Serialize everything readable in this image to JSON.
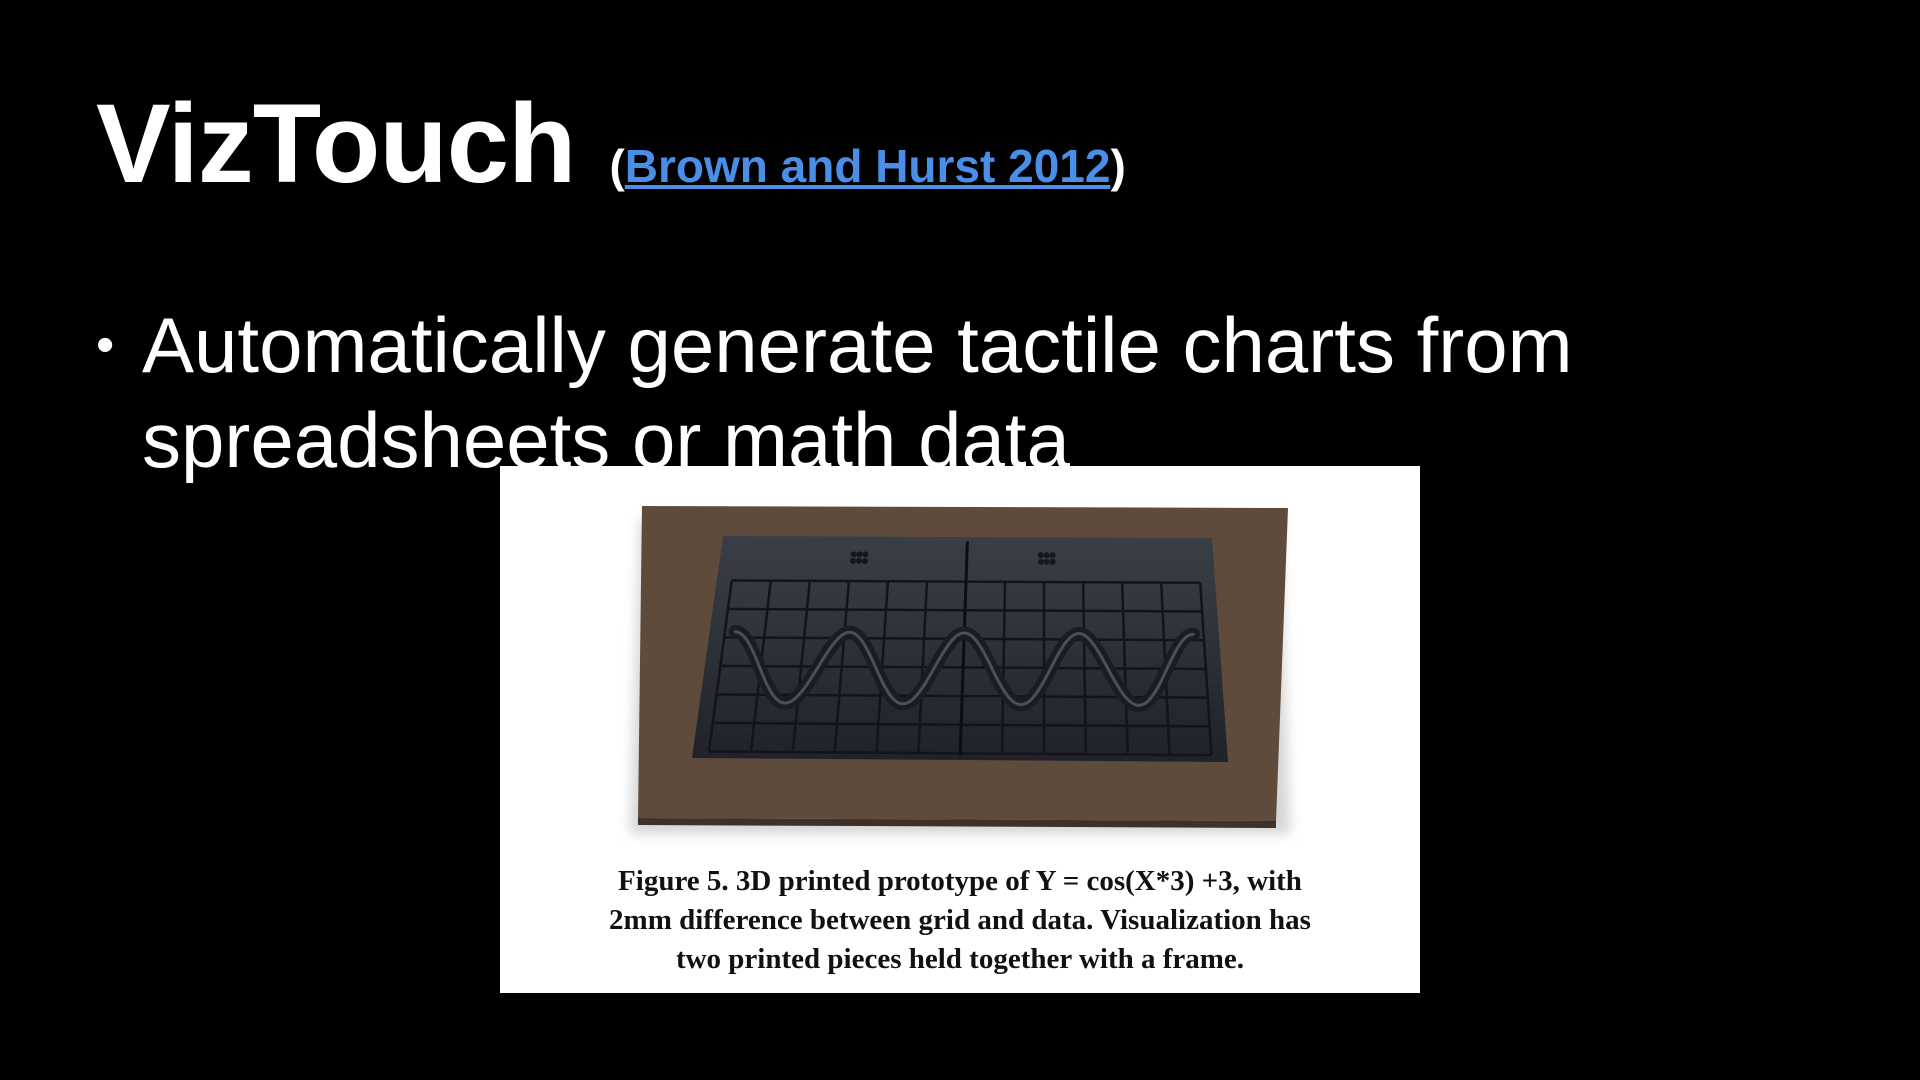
{
  "slide": {
    "title": "VizTouch",
    "citation_open": "(",
    "citation_link": "Brown and Hurst 2012",
    "citation_close": ")",
    "bullet_symbol": "•",
    "bullet_text": "Automatically generate tactile charts from spreadsheets or math data"
  },
  "figure": {
    "caption_lines": [
      "Figure 5. 3D printed prototype of Y = cos(X*3) +3, with",
      "2mm difference between grid and data. Visualization has",
      "two printed pieces held together with a frame."
    ],
    "photo": {
      "frame_color": "#5e4b3c",
      "board_color": "#2b2f36",
      "wave_peaks": 4
    }
  },
  "colors": {
    "background": "#000000",
    "text": "#ffffff",
    "link": "#4a8fe7"
  }
}
